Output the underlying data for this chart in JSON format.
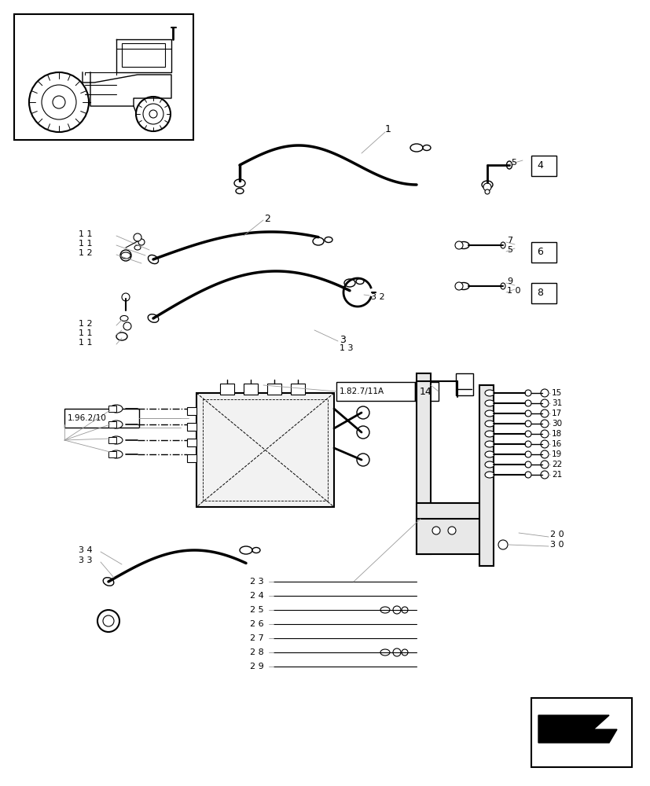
{
  "bg_color": "#ffffff",
  "lc": "#000000",
  "gray": "#999999",
  "figsize": [
    8.28,
    10.0
  ],
  "dpi": 100
}
